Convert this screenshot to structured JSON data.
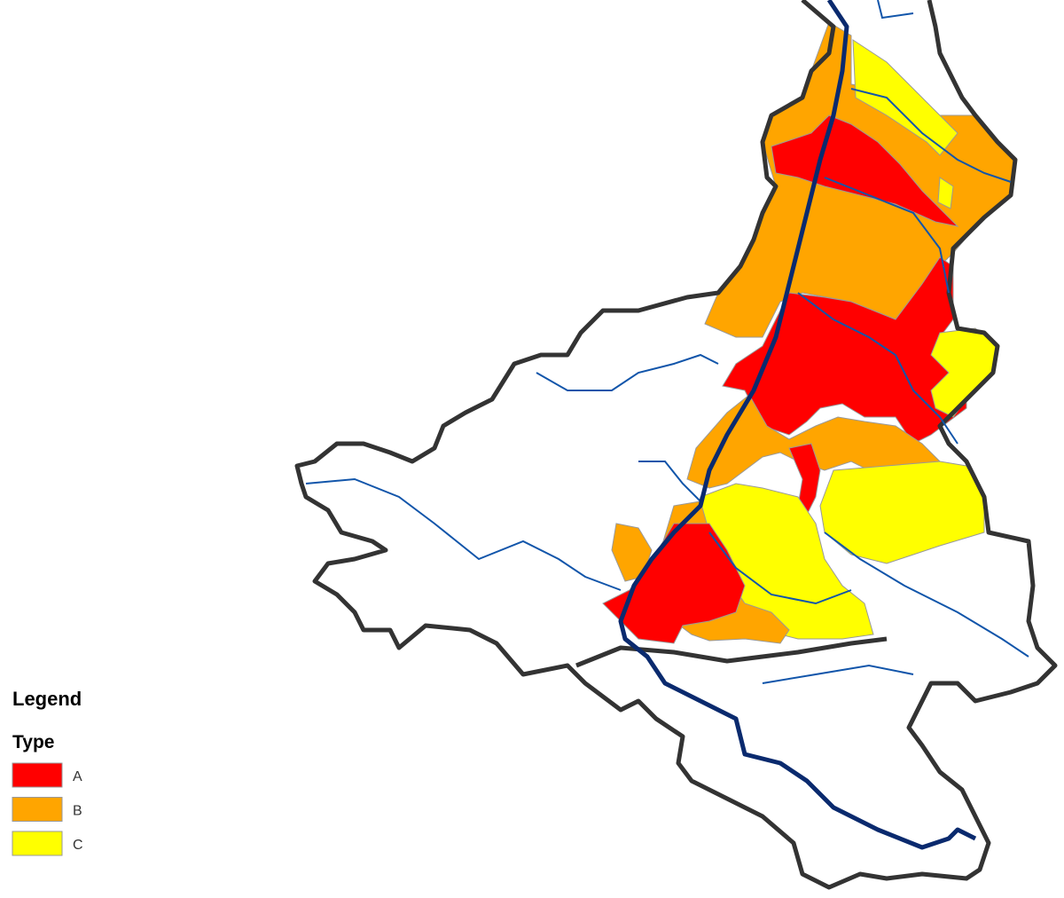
{
  "legend": {
    "title": "Legend",
    "subtitle": "Type",
    "items": [
      {
        "label": "A",
        "color": "#ff0000"
      },
      {
        "label": "B",
        "color": "#ffa500"
      },
      {
        "label": "C",
        "color": "#ffff00"
      }
    ]
  }
}
